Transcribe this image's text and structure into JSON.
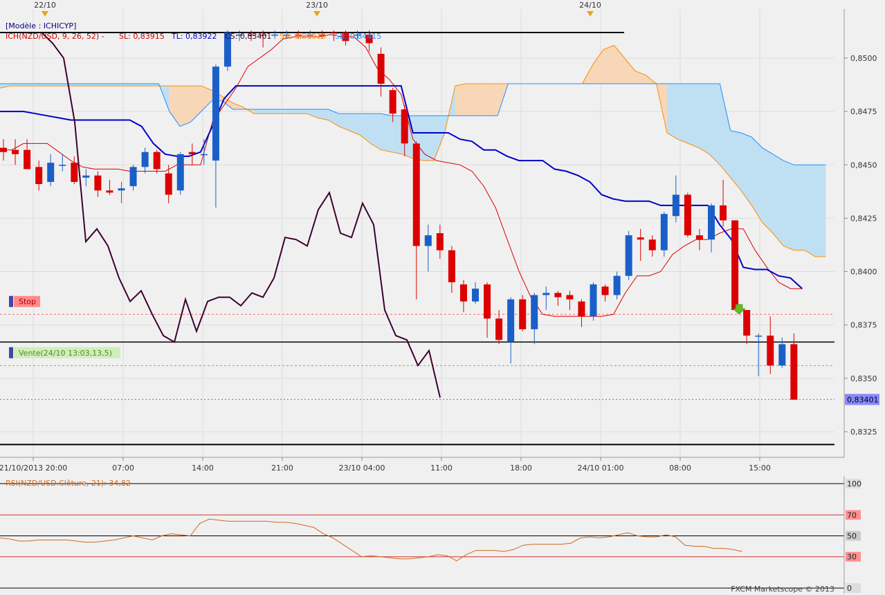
{
  "chart_data": [
    {
      "type": "candlestick",
      "instrument": "NZD/USD",
      "date_markers": [
        "22/10",
        "23/10",
        "24/10"
      ],
      "x_tick_labels": [
        "21/10/2013 20:00",
        "07:00",
        "14:00",
        "21:00",
        "23/10 04:00",
        "11:00",
        "18:00",
        "24/10 01:00",
        "08:00",
        "15:00"
      ],
      "y_ticks": [
        0.8325,
        0.835,
        0.8375,
        0.84,
        0.8425,
        0.845,
        0.8475,
        0.85
      ],
      "y_tick_labels": [
        "0,8325",
        "0,8350",
        "0,8375",
        "0,8400",
        "0,8425",
        "0,8450",
        "0,8475",
        "0,8500"
      ],
      "ylim": [
        0.8313,
        0.8523
      ],
      "current_price_label": "0,83401",
      "current_price": 0.83401,
      "legend_lines": [
        {
          "text": "[Modèle : ICHICYP]",
          "color": "#000080"
        },
        {
          "text": "ICH(NZD/USD, 9, 26, 52) -",
          "color": "#cc0000"
        },
        {
          "text": "SL: 0,83915",
          "color": "#cc0000"
        },
        {
          "text": "TL: 0,83922",
          "color": "#0000cc"
        },
        {
          "text": "CS: 0,83401",
          "color": "#3c0030"
        },
        {
          "text": "SA: 0,83919",
          "color": "#ff8c00"
        },
        {
          "text": "SB: 0,84415",
          "color": "#1e90ff"
        }
      ],
      "order_labels": [
        {
          "text": "Stop",
          "price": 0.838
        },
        {
          "text": "Vente(24/10 13:03,13,5)",
          "price": 0.8356
        }
      ],
      "horizontal_levels": {
        "stop": 0.838,
        "entry": 0.8367,
        "target": 0.8356,
        "support": 0.8319,
        "resistance": 0.8512
      },
      "candles": [
        {
          "o": 0.8458,
          "h": 0.8462,
          "l": 0.8452,
          "c": 0.8456,
          "bull": false
        },
        {
          "o": 0.8457,
          "h": 0.8462,
          "l": 0.845,
          "c": 0.8455,
          "bull": false
        },
        {
          "o": 0.8457,
          "h": 0.8462,
          "l": 0.8448,
          "c": 0.8448,
          "bull": false
        },
        {
          "o": 0.8449,
          "h": 0.8452,
          "l": 0.8438,
          "c": 0.8441,
          "bull": false
        },
        {
          "o": 0.8442,
          "h": 0.8455,
          "l": 0.844,
          "c": 0.8451,
          "bull": true
        },
        {
          "o": 0.845,
          "h": 0.8455,
          "l": 0.8447,
          "c": 0.845,
          "bull": true
        },
        {
          "o": 0.8451,
          "h": 0.8454,
          "l": 0.8441,
          "c": 0.8442,
          "bull": false
        },
        {
          "o": 0.8444,
          "h": 0.8448,
          "l": 0.844,
          "c": 0.8445,
          "bull": true
        },
        {
          "o": 0.8445,
          "h": 0.8447,
          "l": 0.8435,
          "c": 0.8438,
          "bull": false
        },
        {
          "o": 0.8438,
          "h": 0.8443,
          "l": 0.8436,
          "c": 0.8437,
          "bull": false
        },
        {
          "o": 0.8439,
          "h": 0.8442,
          "l": 0.8432,
          "c": 0.8438,
          "bull": true
        },
        {
          "o": 0.844,
          "h": 0.845,
          "l": 0.8438,
          "c": 0.8449,
          "bull": true
        },
        {
          "o": 0.8449,
          "h": 0.8458,
          "l": 0.8446,
          "c": 0.8456,
          "bull": true
        },
        {
          "o": 0.8456,
          "h": 0.8457,
          "l": 0.8446,
          "c": 0.8448,
          "bull": false
        },
        {
          "o": 0.8446,
          "h": 0.845,
          "l": 0.8432,
          "c": 0.8436,
          "bull": false
        },
        {
          "o": 0.8438,
          "h": 0.8456,
          "l": 0.8436,
          "c": 0.8455,
          "bull": true
        },
        {
          "o": 0.8455,
          "h": 0.846,
          "l": 0.845,
          "c": 0.8456,
          "bull": false
        },
        {
          "o": 0.8455,
          "h": 0.8462,
          "l": 0.845,
          "c": 0.8455,
          "bull": true
        },
        {
          "o": 0.8452,
          "h": 0.8497,
          "l": 0.843,
          "c": 0.8496,
          "bull": true
        },
        {
          "o": 0.8496,
          "h": 0.8513,
          "l": 0.8494,
          "c": 0.8512,
          "bull": true
        },
        {
          "o": 0.8511,
          "h": 0.8513,
          "l": 0.8508,
          "c": 0.8511,
          "bull": true
        },
        {
          "o": 0.8511,
          "h": 0.8513,
          "l": 0.8508,
          "c": 0.8511,
          "bull": false
        },
        {
          "o": 0.8511,
          "h": 0.8513,
          "l": 0.8505,
          "c": 0.8511,
          "bull": false
        },
        {
          "o": 0.8511,
          "h": 0.8513,
          "l": 0.8509,
          "c": 0.8511,
          "bull": true
        },
        {
          "o": 0.8511,
          "h": 0.8513,
          "l": 0.8509,
          "c": 0.8511,
          "bull": true
        },
        {
          "o": 0.8511,
          "h": 0.8513,
          "l": 0.8509,
          "c": 0.8511,
          "bull": false
        },
        {
          "o": 0.8511,
          "h": 0.8513,
          "l": 0.8509,
          "c": 0.8511,
          "bull": true
        },
        {
          "o": 0.8511,
          "h": 0.8513,
          "l": 0.8509,
          "c": 0.8511,
          "bull": false
        },
        {
          "o": 0.8512,
          "h": 0.8513,
          "l": 0.8508,
          "c": 0.8512,
          "bull": false
        },
        {
          "o": 0.8512,
          "h": 0.8513,
          "l": 0.8506,
          "c": 0.8508,
          "bull": false
        },
        {
          "o": 0.8511,
          "h": 0.8513,
          "l": 0.8509,
          "c": 0.8511,
          "bull": true
        },
        {
          "o": 0.8511,
          "h": 0.8513,
          "l": 0.8503,
          "c": 0.8507,
          "bull": false
        },
        {
          "o": 0.8502,
          "h": 0.8505,
          "l": 0.8482,
          "c": 0.8488,
          "bull": false
        },
        {
          "o": 0.8485,
          "h": 0.8486,
          "l": 0.847,
          "c": 0.8474,
          "bull": false
        },
        {
          "o": 0.8476,
          "h": 0.8478,
          "l": 0.8454,
          "c": 0.846,
          "bull": false
        },
        {
          "o": 0.846,
          "h": 0.8461,
          "l": 0.8387,
          "c": 0.8412,
          "bull": false
        },
        {
          "o": 0.8412,
          "h": 0.8422,
          "l": 0.84,
          "c": 0.8417,
          "bull": true
        },
        {
          "o": 0.8418,
          "h": 0.8422,
          "l": 0.8406,
          "c": 0.841,
          "bull": false
        },
        {
          "o": 0.841,
          "h": 0.8412,
          "l": 0.839,
          "c": 0.8395,
          "bull": false
        },
        {
          "o": 0.8394,
          "h": 0.8396,
          "l": 0.8381,
          "c": 0.8386,
          "bull": false
        },
        {
          "o": 0.8386,
          "h": 0.8395,
          "l": 0.8385,
          "c": 0.8392,
          "bull": true
        },
        {
          "o": 0.8394,
          "h": 0.8395,
          "l": 0.8369,
          "c": 0.8378,
          "bull": false
        },
        {
          "o": 0.8378,
          "h": 0.8382,
          "l": 0.8366,
          "c": 0.8368,
          "bull": false
        },
        {
          "o": 0.8367,
          "h": 0.8388,
          "l": 0.8357,
          "c": 0.8387,
          "bull": true
        },
        {
          "o": 0.8387,
          "h": 0.8389,
          "l": 0.8372,
          "c": 0.8373,
          "bull": false
        },
        {
          "o": 0.8373,
          "h": 0.839,
          "l": 0.8366,
          "c": 0.8389,
          "bull": true
        },
        {
          "o": 0.8389,
          "h": 0.8393,
          "l": 0.8382,
          "c": 0.839,
          "bull": true
        },
        {
          "o": 0.839,
          "h": 0.8391,
          "l": 0.8384,
          "c": 0.8388,
          "bull": false
        },
        {
          "o": 0.8389,
          "h": 0.8391,
          "l": 0.8382,
          "c": 0.8387,
          "bull": false
        },
        {
          "o": 0.8386,
          "h": 0.8387,
          "l": 0.8374,
          "c": 0.8379,
          "bull": false
        },
        {
          "o": 0.8379,
          "h": 0.8395,
          "l": 0.8377,
          "c": 0.8394,
          "bull": true
        },
        {
          "o": 0.8393,
          "h": 0.8394,
          "l": 0.8386,
          "c": 0.8389,
          "bull": false
        },
        {
          "o": 0.8389,
          "h": 0.84,
          "l": 0.8387,
          "c": 0.8398,
          "bull": true
        },
        {
          "o": 0.8398,
          "h": 0.8419,
          "l": 0.8396,
          "c": 0.8417,
          "bull": true
        },
        {
          "o": 0.8416,
          "h": 0.842,
          "l": 0.8405,
          "c": 0.8415,
          "bull": false
        },
        {
          "o": 0.8415,
          "h": 0.8417,
          "l": 0.8407,
          "c": 0.841,
          "bull": false
        },
        {
          "o": 0.841,
          "h": 0.8428,
          "l": 0.8407,
          "c": 0.8427,
          "bull": true
        },
        {
          "o": 0.8426,
          "h": 0.8445,
          "l": 0.8423,
          "c": 0.8436,
          "bull": true
        },
        {
          "o": 0.8436,
          "h": 0.8437,
          "l": 0.8416,
          "c": 0.8417,
          "bull": false
        },
        {
          "o": 0.8417,
          "h": 0.842,
          "l": 0.841,
          "c": 0.8415,
          "bull": false
        },
        {
          "o": 0.8415,
          "h": 0.8432,
          "l": 0.8409,
          "c": 0.8431,
          "bull": true
        },
        {
          "o": 0.8431,
          "h": 0.8443,
          "l": 0.8421,
          "c": 0.8424,
          "bull": false
        },
        {
          "o": 0.8424,
          "h": 0.8424,
          "l": 0.8382,
          "c": 0.8382,
          "bull": false
        },
        {
          "o": 0.8382,
          "h": 0.8382,
          "l": 0.8366,
          "c": 0.837,
          "bull": false
        },
        {
          "o": 0.837,
          "h": 0.8371,
          "l": 0.8351,
          "c": 0.837,
          "bull": true
        },
        {
          "o": 0.837,
          "h": 0.8379,
          "l": 0.8352,
          "c": 0.8356,
          "bull": false
        },
        {
          "o": 0.8356,
          "h": 0.8369,
          "l": 0.8355,
          "c": 0.8366,
          "bull": true
        },
        {
          "o": 0.8366,
          "h": 0.8371,
          "l": 0.834,
          "c": 0.834,
          "bull": false
        }
      ],
      "ichimoku": {
        "tenkan": [
          0.8457,
          0.8457,
          0.846,
          0.846,
          0.846,
          0.8456,
          0.8452,
          0.8449,
          0.8448,
          0.8448,
          0.8448,
          0.8447,
          0.8447,
          0.8447,
          0.8447,
          0.845,
          0.845,
          0.845,
          0.847,
          0.8478,
          0.8486,
          0.8496,
          0.85,
          0.8504,
          0.8509,
          0.851,
          0.851,
          0.851,
          0.8511,
          0.851,
          0.851,
          0.8505,
          0.8495,
          0.849,
          0.8483,
          0.8462,
          0.8455,
          0.8452,
          0.8451,
          0.845,
          0.8447,
          0.844,
          0.843,
          0.8415,
          0.84,
          0.8388,
          0.838,
          0.8379,
          0.8379,
          0.8379,
          0.8379,
          0.8379,
          0.838,
          0.839,
          0.8398,
          0.8398,
          0.84,
          0.8408,
          0.8412,
          0.8415,
          0.8415,
          0.8418,
          0.842,
          0.842,
          0.841,
          0.8402,
          0.8395,
          0.8392,
          0.8392
        ],
        "kijun": [
          0.8475,
          0.8475,
          0.8475,
          0.8474,
          0.8473,
          0.8472,
          0.8471,
          0.8471,
          0.8471,
          0.8471,
          0.8471,
          0.8471,
          0.8468,
          0.846,
          0.8455,
          0.8454,
          0.8454,
          0.8456,
          0.8468,
          0.8481,
          0.8487,
          0.8487,
          0.8487,
          0.8487,
          0.8487,
          0.8487,
          0.8487,
          0.8487,
          0.8487,
          0.8487,
          0.8487,
          0.8487,
          0.8487,
          0.8487,
          0.8487,
          0.8465,
          0.8465,
          0.8465,
          0.8465,
          0.8462,
          0.8461,
          0.8457,
          0.8457,
          0.8454,
          0.8452,
          0.8452,
          0.8452,
          0.8448,
          0.8447,
          0.8445,
          0.8442,
          0.8436,
          0.8434,
          0.8433,
          0.8433,
          0.8433,
          0.8431,
          0.8431,
          0.8431,
          0.8431,
          0.8431,
          0.8422,
          0.8415,
          0.8402,
          0.8401,
          0.8401,
          0.8398,
          0.8397,
          0.8392
        ],
        "chikou": [
          0.8512,
          0.8507,
          0.85,
          0.847,
          0.8414,
          0.842,
          0.8412,
          0.8397,
          0.8386,
          0.8391,
          0.838,
          0.837,
          0.8367,
          0.8387,
          0.8372,
          0.8386,
          0.8388,
          0.8388,
          0.8384,
          0.839,
          0.8388,
          0.8397,
          0.8416,
          0.8415,
          0.8412,
          0.8429,
          0.8437,
          0.8418,
          0.8416,
          0.8432,
          0.8422,
          0.8382,
          0.837,
          0.8368,
          0.8356,
          0.8363,
          0.8341
        ],
        "senkou_a": [
          0.8486,
          0.8487,
          0.8487,
          0.8487,
          0.8487,
          0.8487,
          0.8487,
          0.8487,
          0.8487,
          0.8487,
          0.8487,
          0.8487,
          0.8487,
          0.8487,
          0.8487,
          0.8487,
          0.8487,
          0.8487,
          0.8487,
          0.8487,
          0.8485,
          0.8482,
          0.8479,
          0.8477,
          0.8474,
          0.8474,
          0.8474,
          0.8474,
          0.8474,
          0.8474,
          0.8472,
          0.8471,
          0.8468,
          0.8466,
          0.8464,
          0.846,
          0.8457,
          0.8456,
          0.8455,
          0.8453,
          0.8452,
          0.8452,
          0.8465,
          0.8487,
          0.8488,
          0.8488,
          0.8488,
          0.8488,
          0.8488,
          0.8488,
          0.8488,
          0.8488,
          0.8488,
          0.8488,
          0.8488,
          0.8488,
          0.8497,
          0.8504,
          0.8506,
          0.85,
          0.8494,
          0.8492,
          0.8488,
          0.8465,
          0.8462,
          0.846,
          0.8458,
          0.8455,
          0.845,
          0.8444,
          0.8438,
          0.8431,
          0.8423,
          0.8418,
          0.8412,
          0.841,
          0.841,
          0.8407,
          0.8407
        ],
        "senkou_b": [
          0.8488,
          0.8488,
          0.8488,
          0.8488,
          0.8488,
          0.8488,
          0.8488,
          0.8488,
          0.8488,
          0.8488,
          0.8488,
          0.8488,
          0.8488,
          0.8488,
          0.8488,
          0.8488,
          0.8475,
          0.8468,
          0.847,
          0.8475,
          0.848,
          0.848,
          0.8476,
          0.8476,
          0.8476,
          0.8476,
          0.8476,
          0.8476,
          0.8476,
          0.8476,
          0.8476,
          0.8476,
          0.8474,
          0.8474,
          0.8474,
          0.8474,
          0.8474,
          0.8473,
          0.8473,
          0.8473,
          0.8473,
          0.8473,
          0.8473,
          0.8473,
          0.8473,
          0.8473,
          0.8473,
          0.8473,
          0.8488,
          0.8488,
          0.8488,
          0.8488,
          0.8488,
          0.8488,
          0.8488,
          0.8488,
          0.8488,
          0.8488,
          0.8488,
          0.8488,
          0.8488,
          0.8488,
          0.8488,
          0.8488,
          0.8488,
          0.8488,
          0.8488,
          0.8488,
          0.8488,
          0.8466,
          0.8465,
          0.8463,
          0.8458,
          0.8455,
          0.8452,
          0.845,
          0.845,
          0.845,
          0.845
        ]
      }
    },
    {
      "type": "line",
      "label": "RSI(NZD/USD.Clôture, 21): 34,82",
      "ylim": [
        0,
        100
      ],
      "levels": [
        100,
        70,
        50,
        30,
        0
      ],
      "level_labels": [
        "100",
        "70",
        "50",
        "30",
        "0"
      ],
      "values": [
        48,
        47,
        45,
        45,
        46,
        46,
        46,
        46,
        45,
        44,
        44,
        45,
        46,
        48,
        50,
        48,
        46,
        50,
        52,
        51,
        50,
        62,
        66,
        65,
        64,
        64,
        64,
        64,
        64,
        63,
        63,
        62,
        60,
        58,
        52,
        48,
        42,
        36,
        30,
        31,
        30,
        29,
        28,
        28,
        29,
        30,
        32,
        31,
        26,
        32,
        36,
        36,
        36,
        35,
        37,
        41,
        42,
        42,
        42,
        42,
        43,
        48,
        49,
        48,
        49,
        51,
        53,
        50,
        49,
        49,
        51,
        49,
        41,
        40,
        40,
        38,
        38,
        37,
        35
      ],
      "current_value": 34.82
    }
  ],
  "footer": {
    "copyright": "FXCM Marketscope © 2013"
  }
}
